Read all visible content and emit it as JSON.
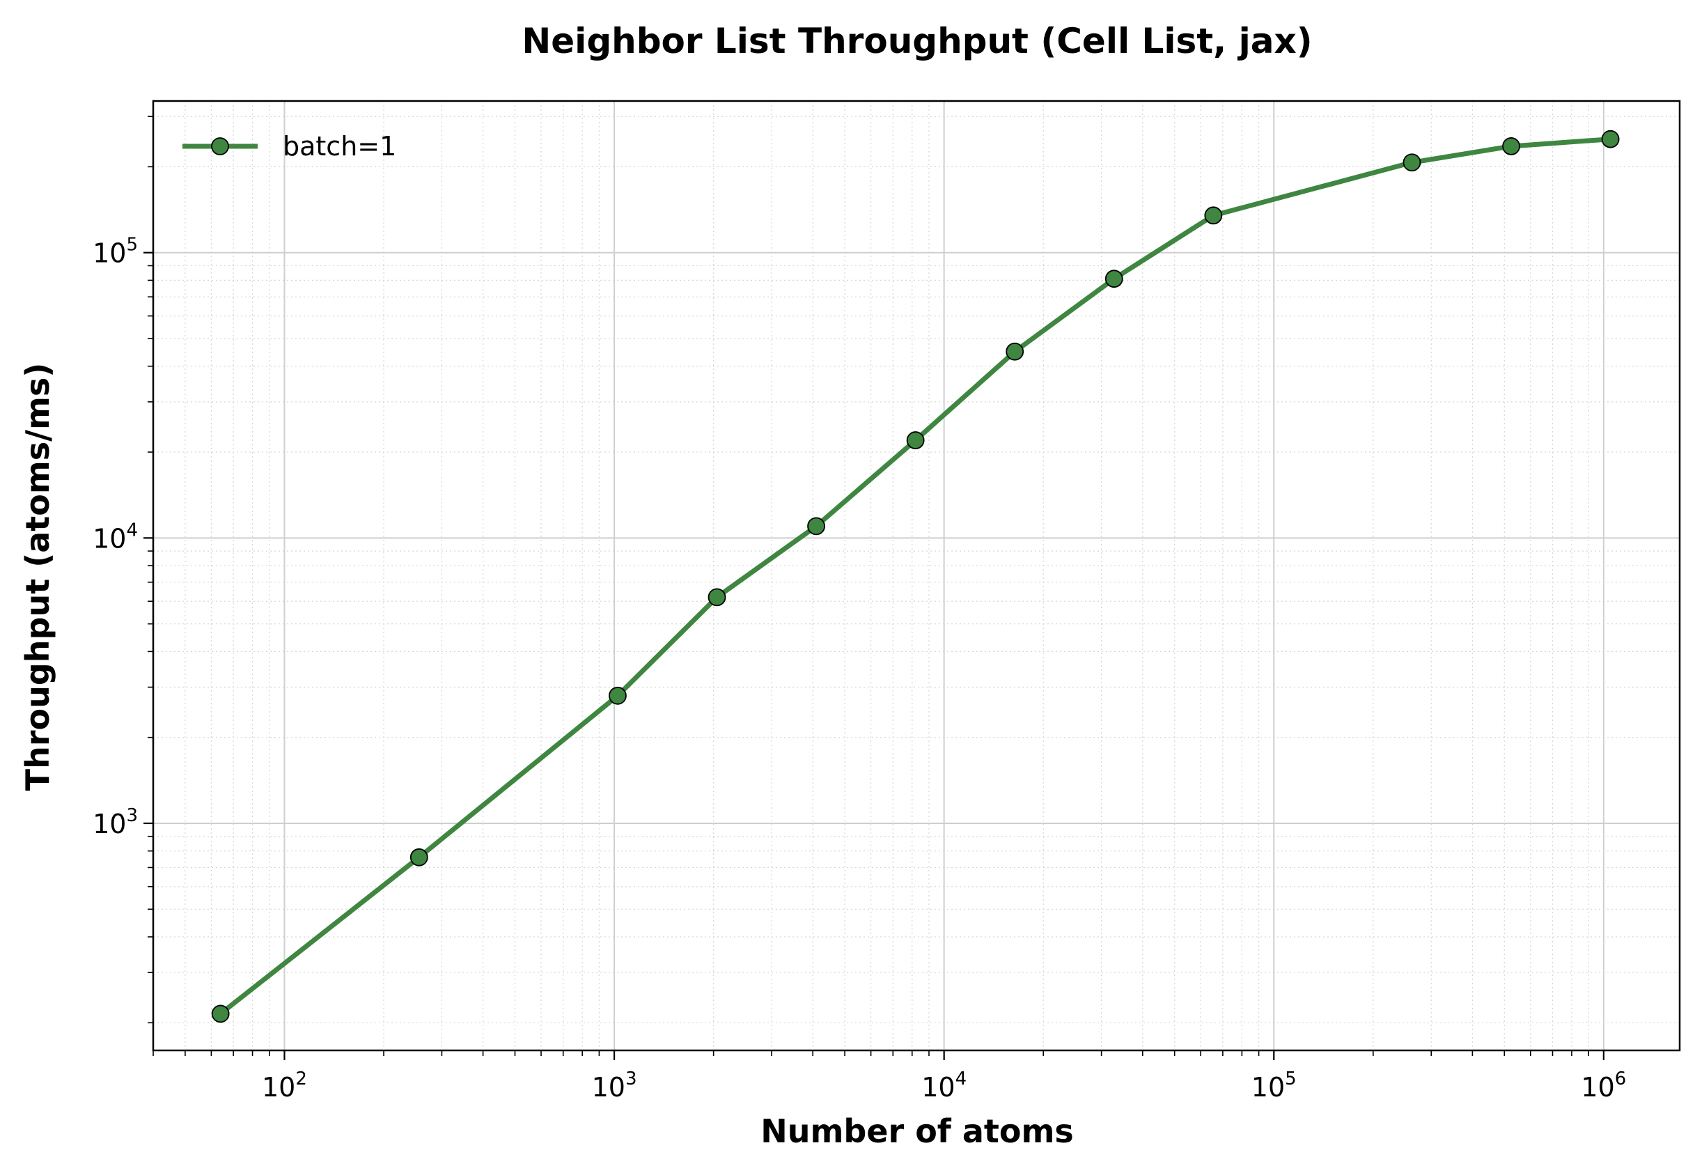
{
  "chart_data": {
    "type": "line",
    "title": "Neighbor List Throughput (Cell List, jax)",
    "xlabel": "Number of atoms",
    "ylabel": "Throughput (atoms/ms)",
    "xscale": "log",
    "yscale": "log",
    "xlim": [
      40,
      1700000
    ],
    "ylim": [
      160,
      340000
    ],
    "x_ticks": [
      {
        "base": "10",
        "exp": "2",
        "value": 100
      },
      {
        "base": "10",
        "exp": "3",
        "value": 1000
      },
      {
        "base": "10",
        "exp": "4",
        "value": 10000
      },
      {
        "base": "10",
        "exp": "5",
        "value": 100000
      },
      {
        "base": "10",
        "exp": "6",
        "value": 1000000
      }
    ],
    "y_ticks": [
      {
        "base": "10",
        "exp": "3",
        "value": 1000
      },
      {
        "base": "10",
        "exp": "4",
        "value": 10000
      },
      {
        "base": "10",
        "exp": "5",
        "value": 100000
      }
    ],
    "grid": true,
    "legend_position": "top-left",
    "series": [
      {
        "name": "batch=1",
        "color": "#3f8641",
        "x": [
          64,
          256,
          1024,
          2048,
          4096,
          8192,
          16384,
          32768,
          65536,
          262144,
          524288,
          1048576
        ],
        "y": [
          215,
          760,
          2800,
          6200,
          11000,
          22000,
          45000,
          81000,
          135000,
          207000,
          236000,
          250000
        ]
      }
    ]
  }
}
